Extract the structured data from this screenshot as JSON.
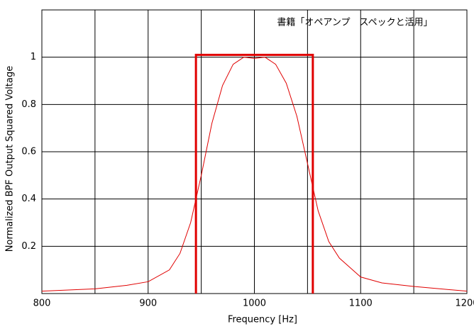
{
  "chart_data": {
    "type": "line",
    "annotation": "書籍「オペアンプ　スペックと活用」",
    "xlabel": "Frequency [Hz]",
    "ylabel": "Normalized BPF Output Squared Voltage",
    "xlim": [
      800,
      1200
    ],
    "xticks": [
      800,
      900,
      1000,
      1100,
      1200
    ],
    "x_minor_grid": [
      850,
      950,
      1050,
      1150
    ],
    "ylim": [
      0,
      1.2
    ],
    "yticks": [
      0.2,
      0.4,
      0.6,
      0.8,
      1
    ],
    "grid": true,
    "series": [
      {
        "color": "#e00000",
        "width": 1,
        "x": [
          800,
          850,
          880,
          900,
          920,
          930,
          940,
          950,
          960,
          970,
          980,
          990,
          1000,
          1010,
          1020,
          1030,
          1040,
          1050,
          1060,
          1070,
          1080,
          1100,
          1120,
          1150,
          1200
        ],
        "values": [
          0.01,
          0.02,
          0.035,
          0.05,
          0.1,
          0.17,
          0.3,
          0.5,
          0.72,
          0.88,
          0.97,
          1.0,
          0.995,
          1.0,
          0.97,
          0.89,
          0.75,
          0.55,
          0.35,
          0.22,
          0.15,
          0.07,
          0.045,
          0.03,
          0.01
        ]
      },
      {
        "color": "#e00000",
        "width": 3,
        "x": [
          945,
          945,
          1055,
          1055
        ],
        "values": [
          0,
          1.01,
          1.01,
          0
        ]
      }
    ]
  }
}
